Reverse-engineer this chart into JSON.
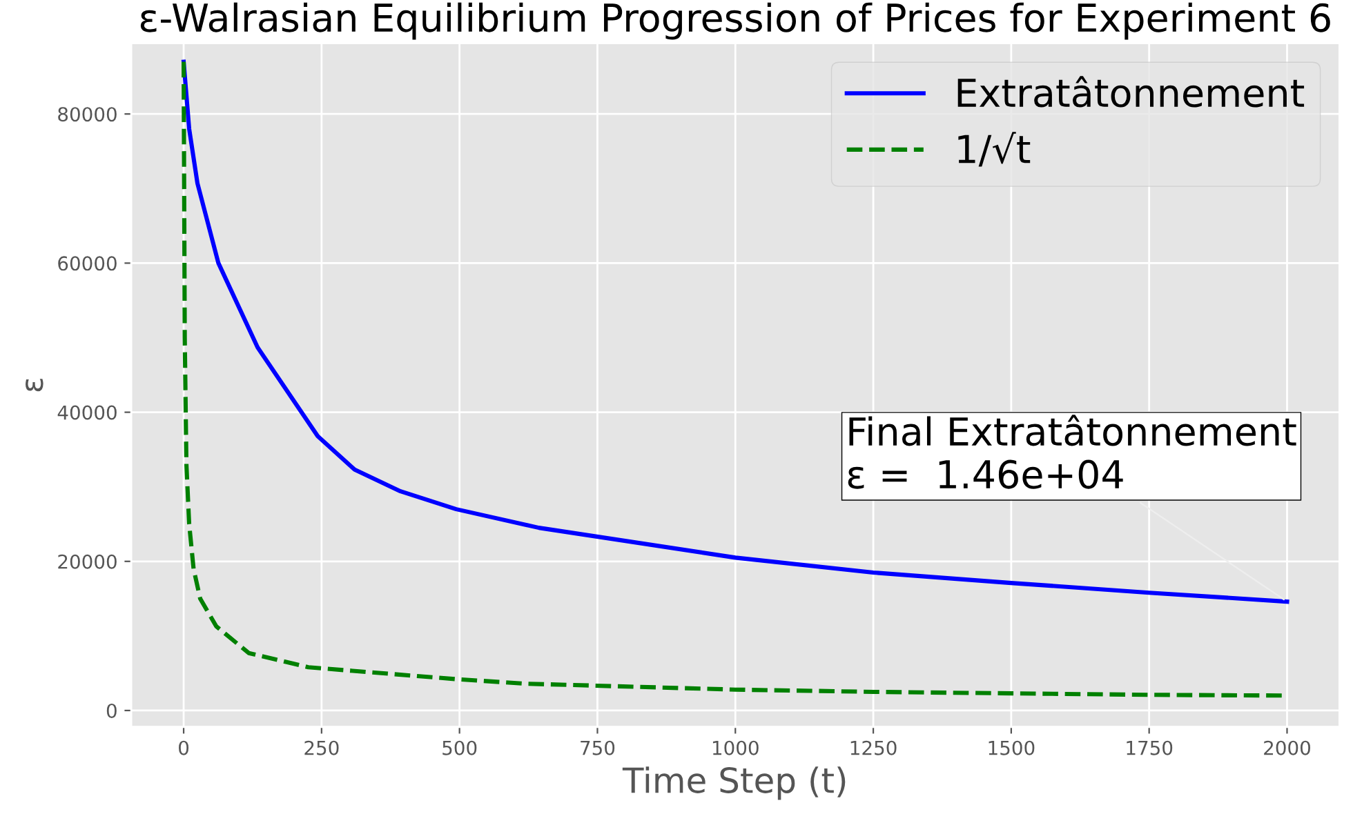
{
  "chart_data": {
    "type": "line",
    "title": "ε-Walrasian Equilibrium Progression of Prices for Experiment 6",
    "xlabel": "Time Step (t)",
    "ylabel": "ε",
    "series": [
      {
        "name": "Extratâtonnement",
        "color": "#0000ff",
        "line_style": "solid",
        "x": [
          0,
          10,
          25,
          63,
          134,
          243,
          310,
          393,
          494,
          644,
          1000,
          1250,
          1500,
          1750,
          2000
        ],
        "values": [
          87000,
          78000,
          70700,
          60000,
          48700,
          36800,
          32300,
          29400,
          27000,
          24500,
          20500,
          18500,
          17100,
          15800,
          14600
        ]
      },
      {
        "name": "1/√t",
        "color": "#008000",
        "line_style": "dashed",
        "x": [
          0,
          2,
          5,
          10,
          18,
          30,
          59,
          118,
          226,
          494,
          619,
          1000,
          1250,
          1500,
          1750,
          2000
        ],
        "values": [
          87000,
          50000,
          33000,
          25000,
          19000,
          15000,
          11300,
          7700,
          5800,
          4200,
          3600,
          2800,
          2500,
          2300,
          2100,
          2000
        ]
      }
    ],
    "annotations": [
      {
        "text": "Final Extratâtonnement\nε =  1.46e+04",
        "x": 2000,
        "y": 14600
      }
    ],
    "xlim": [
      -95,
      2095
    ],
    "ylim": [
      -2200,
      89500
    ],
    "xticks": [
      0,
      250,
      500,
      750,
      1000,
      1250,
      1500,
      1750,
      2000
    ],
    "yticks": [
      0,
      20000,
      40000,
      60000,
      80000
    ],
    "grid": true,
    "legend": "top right",
    "marker": "none"
  }
}
